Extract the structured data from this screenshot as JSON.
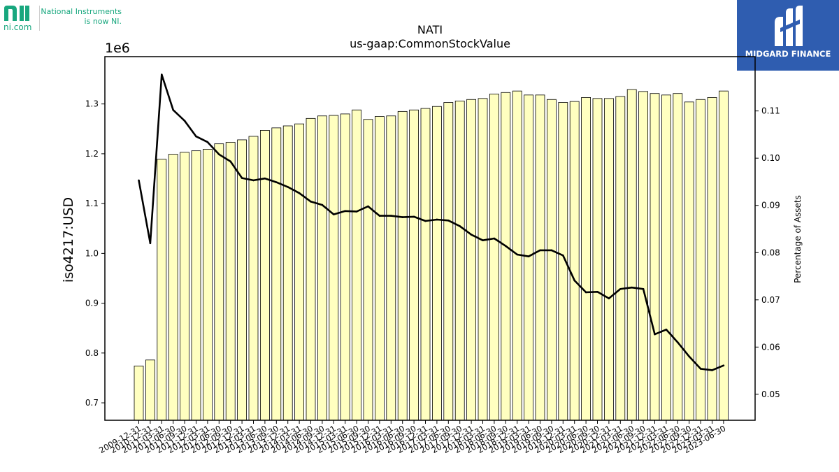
{
  "branding": {
    "ni_url": "ni.com",
    "ni_tagline_line1": "National Instruments",
    "ni_tagline_line2": "is now NI.",
    "midgard_name": "MIDGARD FINANCE"
  },
  "colors": {
    "bar_fill": "#ffffc0",
    "bar_edge": "#000000",
    "line": "#000000",
    "ni_green": "#18a77e",
    "midgard_blue": "#2f5db0"
  },
  "chart_data": {
    "type": "bar",
    "title": "NATI",
    "subtitle": "us-gaap:CommonStockValue",
    "ylabel": "iso4217:USD",
    "ylabel_right": "Percentage of Assets",
    "offset_label": "1e6",
    "ylim": [
      0.665,
      1.395
    ],
    "ylim_right": [
      0.0445,
      0.1215
    ],
    "yticks": [
      0.7,
      0.8,
      0.9,
      1.0,
      1.1,
      1.2,
      1.3
    ],
    "yticks_right": [
      0.05,
      0.06,
      0.07,
      0.08,
      0.09,
      0.1,
      0.11
    ],
    "grid": false,
    "categories": [
      "2009-12-31",
      "2010-12-31",
      "2011-03-31",
      "2011-06-30",
      "2011-09-30",
      "2011-12-31",
      "2012-03-31",
      "2012-06-30",
      "2012-09-30",
      "2012-12-31",
      "2013-03-31",
      "2013-06-30",
      "2013-09-30",
      "2013-12-31",
      "2014-03-31",
      "2014-06-30",
      "2014-09-30",
      "2014-12-31",
      "2015-03-31",
      "2015-06-30",
      "2015-09-30",
      "2015-12-31",
      "2016-03-31",
      "2016-06-30",
      "2016-09-30",
      "2016-12-31",
      "2017-03-31",
      "2017-06-30",
      "2017-09-30",
      "2017-12-31",
      "2018-03-31",
      "2018-06-30",
      "2018-09-30",
      "2018-12-31",
      "2019-03-31",
      "2019-06-30",
      "2019-09-30",
      "2019-12-31",
      "2020-03-31",
      "2020-06-30",
      "2020-09-30",
      "2020-12-31",
      "2021-03-31",
      "2021-06-30",
      "2021-09-30",
      "2021-12-31",
      "2022-03-31",
      "2022-06-30",
      "2022-09-30",
      "2022-12-31",
      "2023-03-31",
      "2023-06-30"
    ],
    "series": [
      {
        "axis": "left",
        "kind": "bar",
        "values": [
          0.774,
          0.786,
          1.189,
          1.199,
          1.203,
          1.206,
          1.209,
          1.22,
          1.223,
          1.228,
          1.235,
          1.247,
          1.252,
          1.256,
          1.26,
          1.271,
          1.276,
          1.277,
          1.28,
          1.288,
          1.269,
          1.275,
          1.276,
          1.285,
          1.288,
          1.291,
          1.295,
          1.303,
          1.306,
          1.309,
          1.311,
          1.32,
          1.323,
          1.326,
          1.318,
          1.318,
          1.309,
          1.303,
          1.305,
          1.313,
          1.311,
          1.311,
          1.315,
          1.329,
          1.325,
          1.321,
          1.318,
          1.321,
          1.304,
          1.309,
          1.313,
          1.326
        ]
      },
      {
        "axis": "right",
        "kind": "line",
        "values": [
          0.0953,
          0.082,
          0.1177,
          0.1102,
          0.1079,
          0.1046,
          0.1034,
          0.1008,
          0.0993,
          0.0958,
          0.0953,
          0.0957,
          0.0949,
          0.0939,
          0.0926,
          0.0908,
          0.0901,
          0.0881,
          0.0888,
          0.0887,
          0.0898,
          0.0878,
          0.0878,
          0.0875,
          0.0876,
          0.0867,
          0.087,
          0.0868,
          0.0856,
          0.0838,
          0.0826,
          0.083,
          0.0814,
          0.0796,
          0.0792,
          0.0805,
          0.0805,
          0.0794,
          0.0741,
          0.0716,
          0.0717,
          0.0703,
          0.0723,
          0.0726,
          0.0723,
          0.0627,
          0.0637,
          0.061,
          0.058,
          0.0554,
          0.0551,
          0.0561
        ]
      }
    ]
  }
}
